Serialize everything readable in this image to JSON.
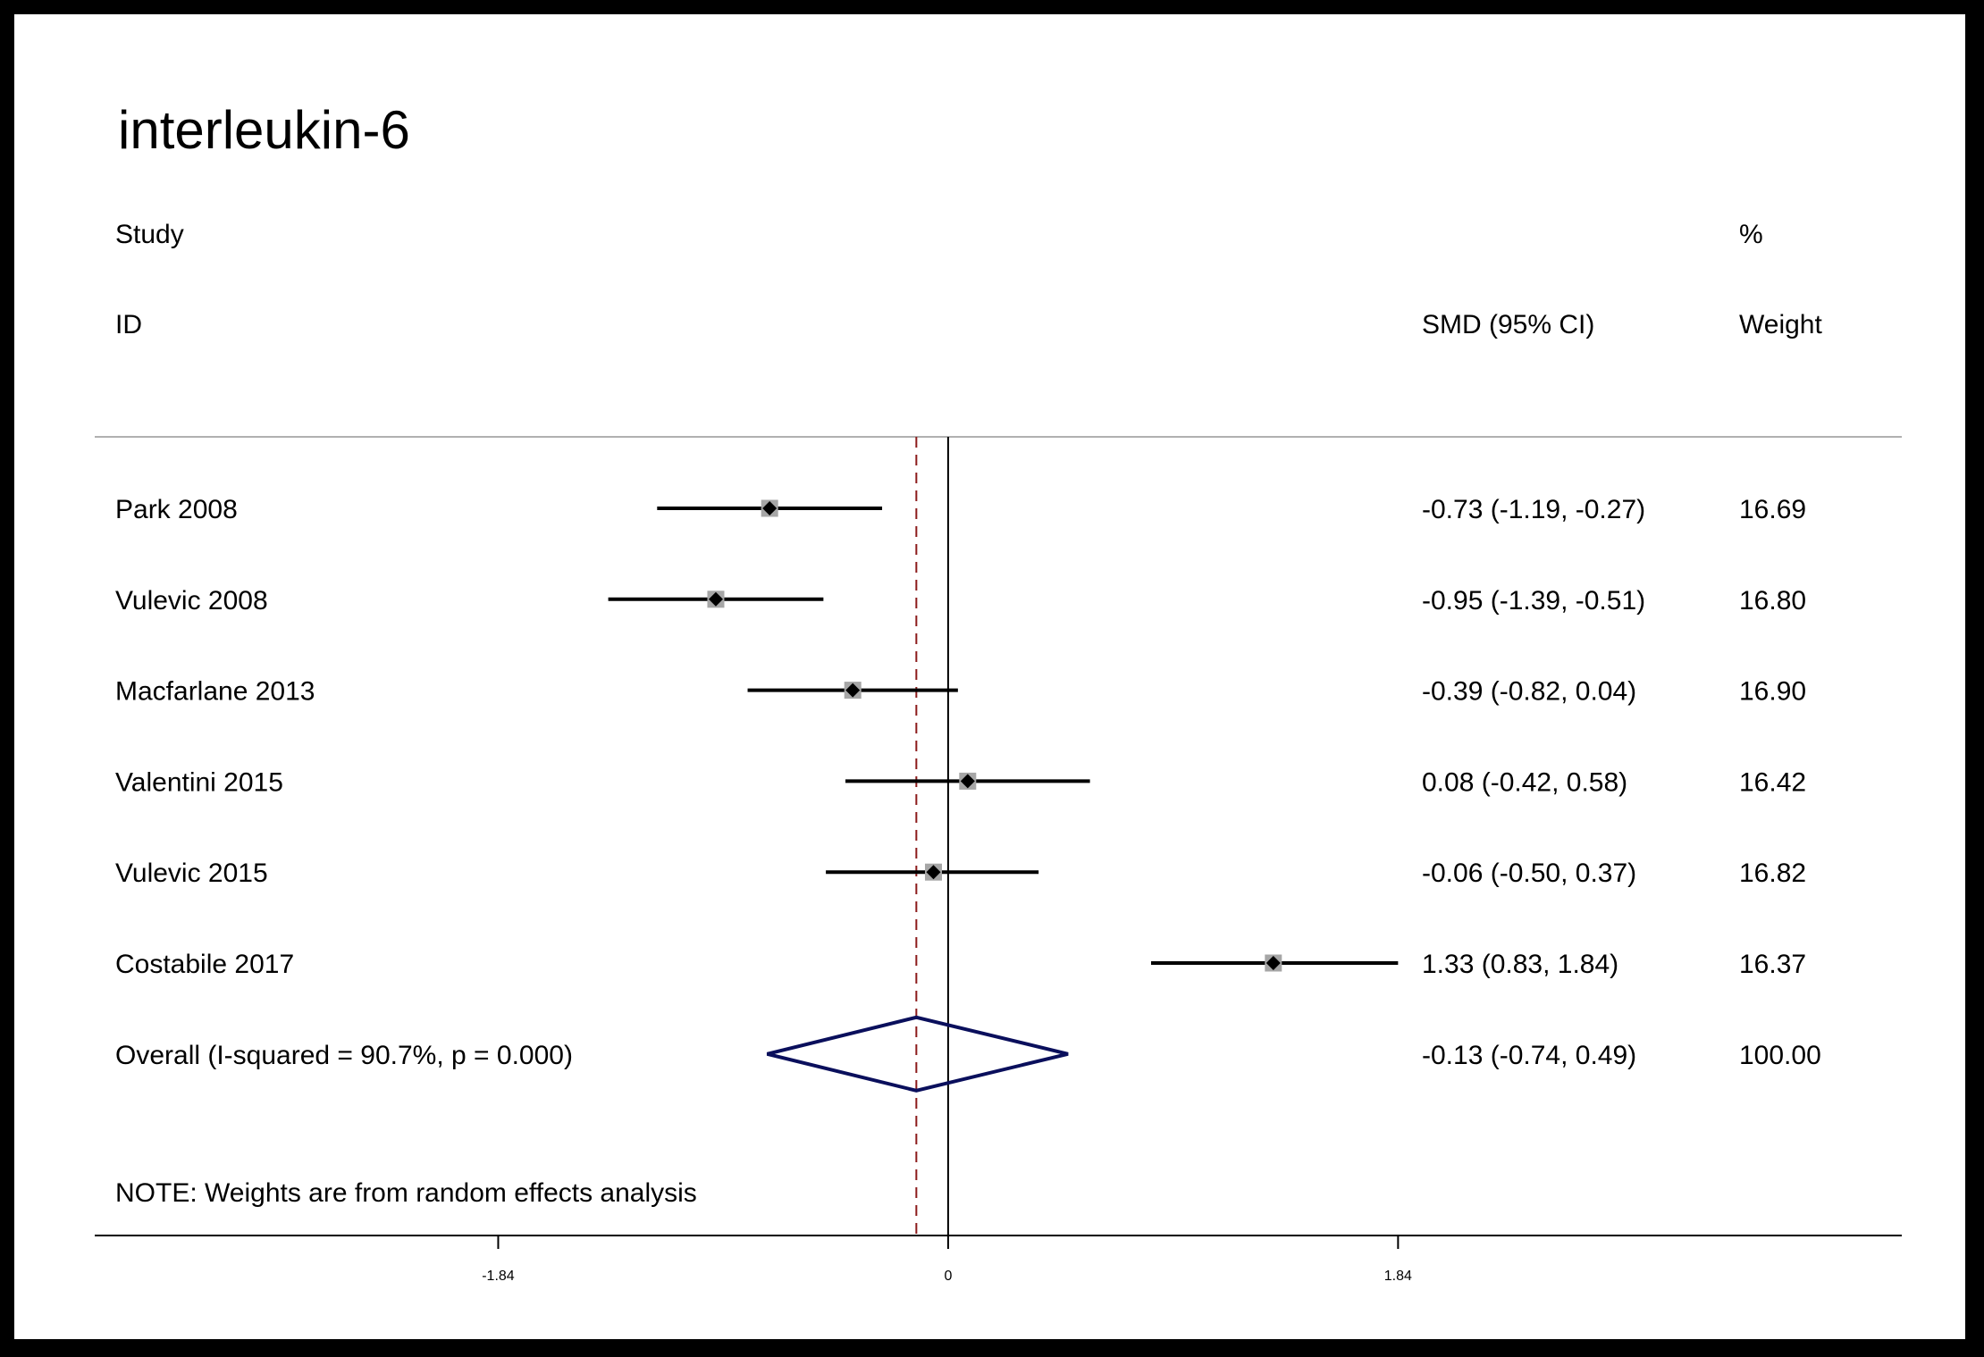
{
  "chart_data": {
    "type": "forest",
    "title": "interleukin-6",
    "headers": {
      "study_line1": "Study",
      "study_line2": "ID",
      "effect": "SMD (95% CI)",
      "weight_line1": "%",
      "weight_line2": "Weight"
    },
    "studies": [
      {
        "label": "Park 2008",
        "smd": -0.73,
        "lo": -1.19,
        "hi": -0.27,
        "ci_text": "-0.73 (-1.19, -0.27)",
        "weight": "16.69"
      },
      {
        "label": "Vulevic 2008",
        "smd": -0.95,
        "lo": -1.39,
        "hi": -0.51,
        "ci_text": "-0.95 (-1.39, -0.51)",
        "weight": "16.80"
      },
      {
        "label": "Macfarlane 2013",
        "smd": -0.39,
        "lo": -0.82,
        "hi": 0.04,
        "ci_text": "-0.39 (-0.82, 0.04)",
        "weight": "16.90"
      },
      {
        "label": "Valentini 2015",
        "smd": 0.08,
        "lo": -0.42,
        "hi": 0.58,
        "ci_text": "0.08 (-0.42, 0.58)",
        "weight": "16.42"
      },
      {
        "label": "Vulevic 2015",
        "smd": -0.06,
        "lo": -0.5,
        "hi": 0.37,
        "ci_text": "-0.06 (-0.50, 0.37)",
        "weight": "16.82"
      },
      {
        "label": "Costabile 2017",
        "smd": 1.33,
        "lo": 0.83,
        "hi": 1.84,
        "ci_text": "1.33 (0.83, 1.84)",
        "weight": "16.37"
      }
    ],
    "overall": {
      "label": "Overall  (I-squared = 90.7%, p = 0.000)",
      "smd": -0.13,
      "lo": -0.74,
      "hi": 0.49,
      "ci_text": "-0.13 (-0.74, 0.49)",
      "weight": "100.00"
    },
    "note": "NOTE: Weights are from random effects analysis",
    "x_ticks": [
      {
        "value": -1.84,
        "label": "-1.84"
      },
      {
        "value": 0,
        "label": "0"
      },
      {
        "value": 1.84,
        "label": "1.84"
      }
    ],
    "xlim": [
      -3.49,
      3.9
    ],
    "colors": {
      "title": "#1a2a4a",
      "diamond": "#0a0f5c",
      "dashed": "#8b1a1a",
      "box": "#a6a6a6",
      "rule": "#b0b0b0"
    }
  }
}
